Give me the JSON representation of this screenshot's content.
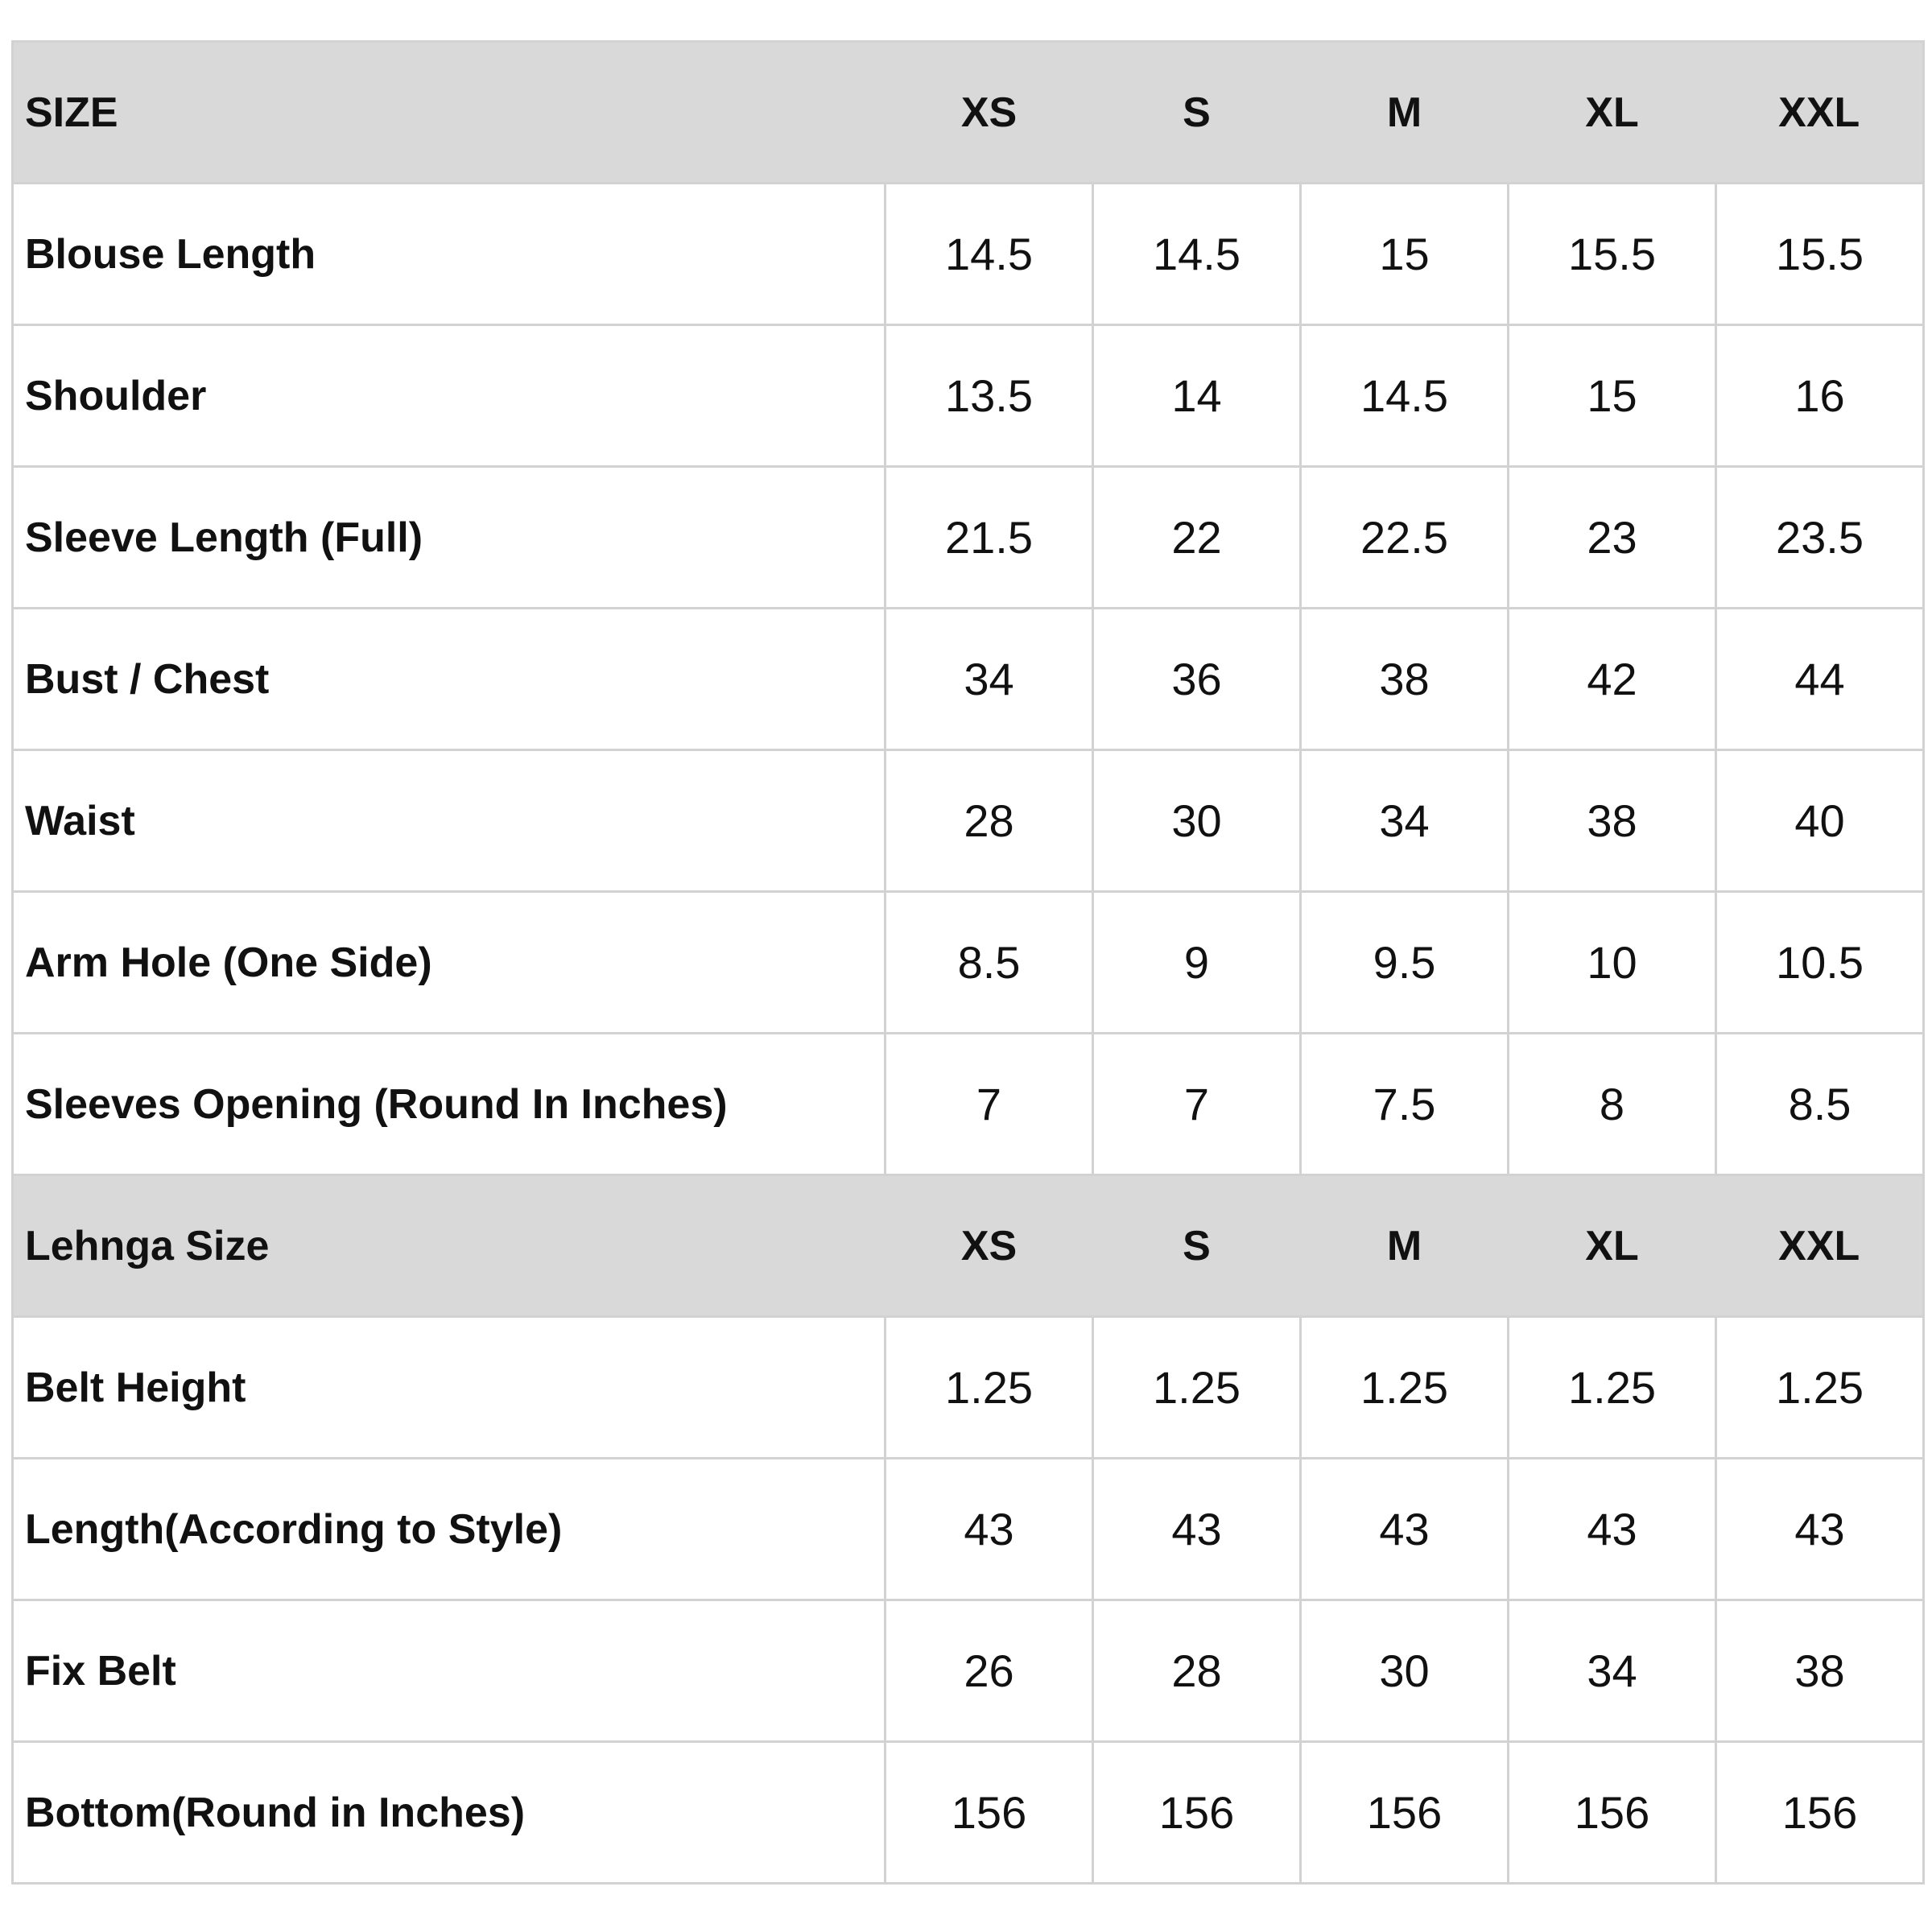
{
  "table": {
    "colors": {
      "header_bg": "#d9d9d9",
      "grid_line": "#d2d2d2",
      "text": "#111111",
      "page_bg": "#ffffff"
    },
    "sections": [
      {
        "header": {
          "label": "SIZE",
          "columns": [
            "XS",
            "S",
            "M",
            "XL",
            "XXL"
          ]
        },
        "rows": [
          {
            "label": "Blouse Length",
            "values": [
              "14.5",
              "14.5",
              "15",
              "15.5",
              "15.5"
            ]
          },
          {
            "label": "Shoulder",
            "values": [
              "13.5",
              "14",
              "14.5",
              "15",
              "16"
            ]
          },
          {
            "label": "Sleeve Length (Full)",
            "values": [
              "21.5",
              "22",
              "22.5",
              "23",
              "23.5"
            ]
          },
          {
            "label": "Bust / Chest",
            "values": [
              "34",
              "36",
              "38",
              "42",
              "44"
            ]
          },
          {
            "label": "Waist",
            "values": [
              "28",
              "30",
              "34",
              "38",
              "40"
            ]
          },
          {
            "label": "Arm Hole (One Side)",
            "values": [
              "8.5",
              "9",
              "9.5",
              "10",
              "10.5"
            ]
          },
          {
            "label": "Sleeves Opening (Round In Inches)",
            "values": [
              "7",
              "7",
              "7.5",
              "8",
              "8.5"
            ]
          }
        ]
      },
      {
        "header": {
          "label": "Lehnga Size",
          "columns": [
            "XS",
            "S",
            "M",
            "XL",
            "XXL"
          ]
        },
        "rows": [
          {
            "label": "Belt Height",
            "values": [
              "1.25",
              "1.25",
              "1.25",
              "1.25",
              "1.25"
            ]
          },
          {
            "label": "Length(According to Style)",
            "values": [
              "43",
              "43",
              "43",
              "43",
              "43"
            ]
          },
          {
            "label": "Fix Belt",
            "values": [
              "26",
              "28",
              "30",
              "34",
              "38"
            ]
          },
          {
            "label": "Bottom(Round in Inches)",
            "values": [
              "156",
              "156",
              "156",
              "156",
              "156"
            ]
          }
        ]
      }
    ]
  }
}
